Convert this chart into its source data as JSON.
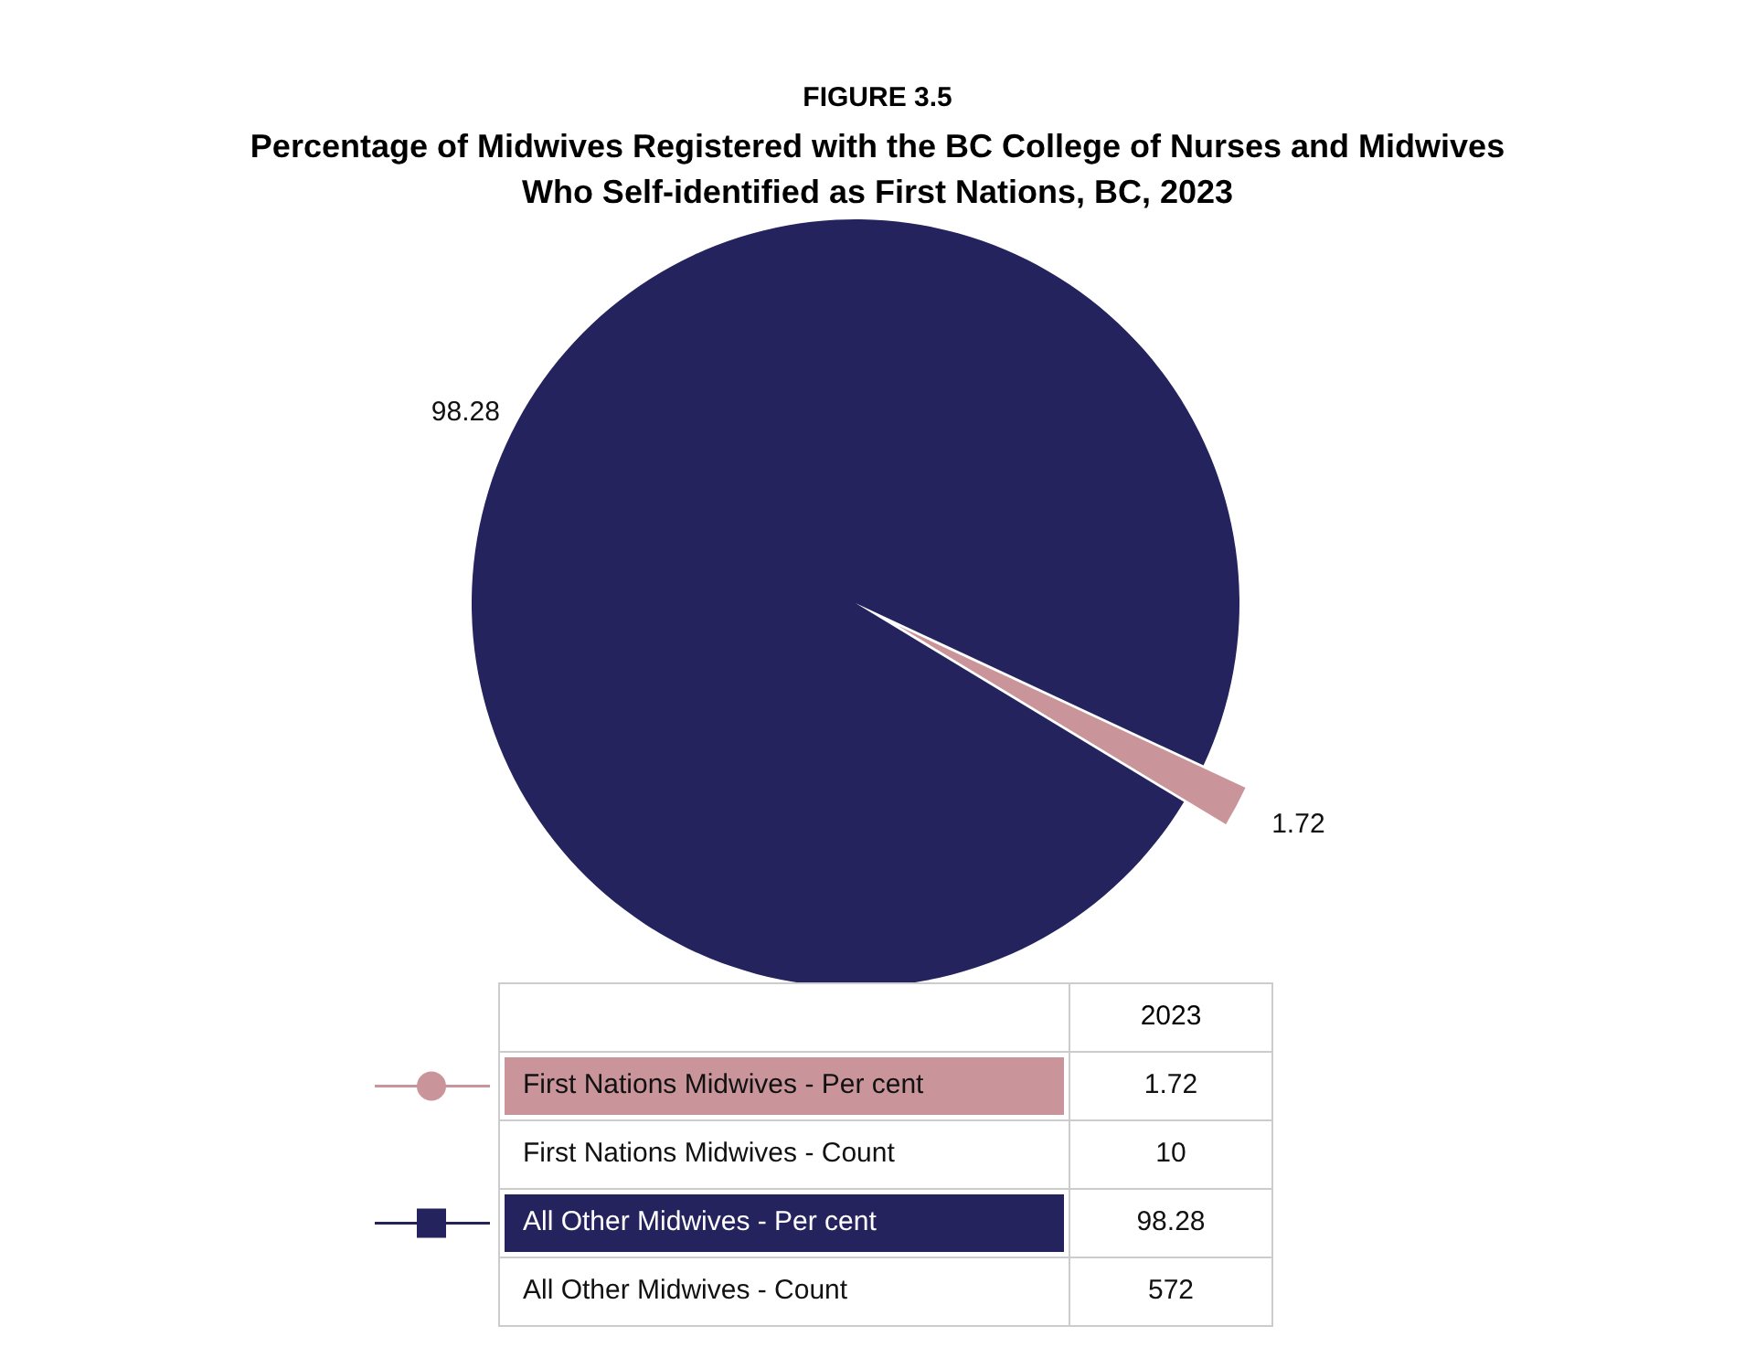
{
  "chart_data": {
    "type": "pie",
    "title": "FIGURE 3.5",
    "subtitle": "Percentage of Midwives Registered with the BC College of Nurses and Midwives\nWho Self-identified as First Nations, BC, 2023",
    "categories": [
      "First Nations Midwives - Per cent",
      "All Other Midwives - Per cent"
    ],
    "values": [
      1.72,
      98.28
    ],
    "colors": [
      "#c9959b",
      "#25235e"
    ],
    "data_labels": true,
    "legend": "bottom",
    "annotations": [
      "2023",
      "1.72",
      "First Nations Midwives - Count",
      "10",
      "98.28",
      "All Other Midwives - Count",
      "572"
    ]
  }
}
